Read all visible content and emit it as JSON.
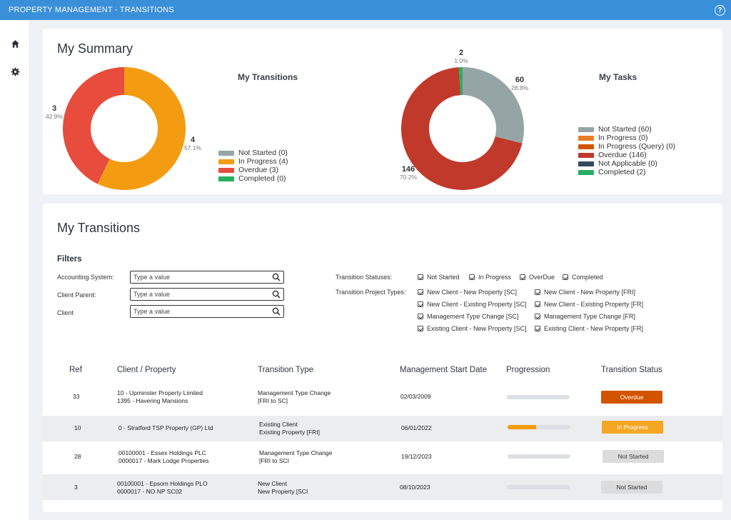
{
  "app": {
    "title": "PROPERTY MANAGEMENT - TRANSITIONS"
  },
  "nav": [
    {
      "icon": "home-icon"
    },
    {
      "icon": "gear-icon"
    }
  ],
  "summary": {
    "heading": "My Summary",
    "transitions_chart": {
      "title": "My Transitions",
      "labels": [
        {
          "count": "3",
          "pct": "42.9%"
        },
        {
          "count": "4",
          "pct": "57.1%"
        }
      ],
      "legend": [
        {
          "label": "Not Started (0)",
          "color": "#95a5a6"
        },
        {
          "label": "In Progress (4)",
          "color": "#f39c12"
        },
        {
          "label": "Overdue (3)",
          "color": "#e74c3c"
        },
        {
          "label": "Completed (0)",
          "color": "#27ae60"
        }
      ]
    },
    "tasks_chart": {
      "title": "My Tasks",
      "labels": [
        {
          "count": "2",
          "pct": "1.0%"
        },
        {
          "count": "60",
          "pct": "28.8%"
        },
        {
          "count": "146",
          "pct": "70.2%"
        }
      ],
      "legend": [
        {
          "label": "Not Started (60)",
          "color": "#95a5a6"
        },
        {
          "label": "In Progress (0)",
          "color": "#e67e22"
        },
        {
          "label": "In Progress (Query) (0)",
          "color": "#d35400"
        },
        {
          "label": "Overdue (146)",
          "color": "#c0392b"
        },
        {
          "label": "Not Applicable (0)",
          "color": "#34495e"
        },
        {
          "label": "Completed (2)",
          "color": "#27ae60"
        }
      ]
    }
  },
  "chart_data": [
    {
      "type": "pie",
      "title": "My Transitions",
      "categories": [
        "Not Started",
        "In Progress",
        "Overdue",
        "Completed"
      ],
      "values": [
        0,
        4,
        3,
        0
      ],
      "percent_labels": {
        "In Progress": "57.1%",
        "Overdue": "42.9%"
      },
      "colors": [
        "#95a5a6",
        "#f39c12",
        "#e74c3c",
        "#27ae60"
      ],
      "legend": "right"
    },
    {
      "type": "pie",
      "title": "My Tasks",
      "categories": [
        "Not Started",
        "In Progress",
        "In Progress (Query)",
        "Overdue",
        "Not Applicable",
        "Completed"
      ],
      "values": [
        60,
        0,
        0,
        146,
        0,
        2
      ],
      "percent_labels": {
        "Not Started": "28.8%",
        "Overdue": "70.2%",
        "Completed": "1.0%"
      },
      "colors": [
        "#95a5a6",
        "#e67e22",
        "#d35400",
        "#c0392b",
        "#34495e",
        "#27ae60"
      ],
      "legend": "right"
    }
  ],
  "transitions": {
    "heading": "My Transitions",
    "filters_heading": "Filters",
    "fields": [
      {
        "label": "Accounting System:",
        "placeholder": "Type a value"
      },
      {
        "label": "Client Parent:",
        "placeholder": "Type a value"
      },
      {
        "label": "Client",
        "placeholder": "Type a value"
      }
    ],
    "statuses_label": "Transition Statuses:",
    "statuses": [
      "Not Started",
      "In Progress",
      "OverDue",
      "Completed"
    ],
    "types_label": "Transition Project Types:",
    "types_col1": [
      "New Client - New Property [SC]",
      "New Client - Existing Property [SC]",
      "Management Type Change [SC]",
      "Existing Client - New Property [SC]"
    ],
    "types_col2": [
      "New Client - New Property [FRI]",
      "New Client - Existing Property [FR]",
      "Management Type Change [FR]",
      "Existing Client - New Property [FR]"
    ],
    "columns": [
      "Ref",
      "Client / Property",
      "Transition Type",
      "Management Start Date",
      "Progression",
      "Transition Status"
    ],
    "rows": [
      {
        "ref": "33",
        "client1": "10 - Upminster Property Limited",
        "client2": "1395 - Havering Mansions",
        "type1": "Management Type Change",
        "type2": "[FRI to SC]",
        "date": "02/03/2009",
        "progress": 0,
        "status": "Overdue",
        "status_bg": "#d35400",
        "status_fg": "#ffffff"
      },
      {
        "ref": "10",
        "client1": "0 - Stratford TSP Property (GP) Ltd",
        "client2": "",
        "type1": "Existing Client",
        "type2": "Existing Property [FRI]",
        "date": "06/01/2022",
        "progress": 0.45,
        "status": "In Progress",
        "status_bg": "#f5a623",
        "status_fg": "#ffffff"
      },
      {
        "ref": "28",
        "client1": "00100001 - Essex Holdings PLC",
        "client2": "0000017  - Mark Lodge  Properties",
        "type1": "Management Type Change",
        "type2": "[FRI to SCI",
        "date": "19/12/2023",
        "progress": 0,
        "status": "Not Started",
        "status_bg": "#dcdcdc",
        "status_fg": "#333333"
      },
      {
        "ref": "3",
        "client1": "00100001 - Epsom Holdings PLO",
        "client2": "0000017  -  NO NP SC02",
        "type1": "New Client",
        "type2": "New Property [SCI",
        "date": "08/10/2023",
        "progress": 0,
        "status": "Not Started",
        "status_bg": "#dcdcdc",
        "status_fg": "#333333"
      }
    ]
  }
}
